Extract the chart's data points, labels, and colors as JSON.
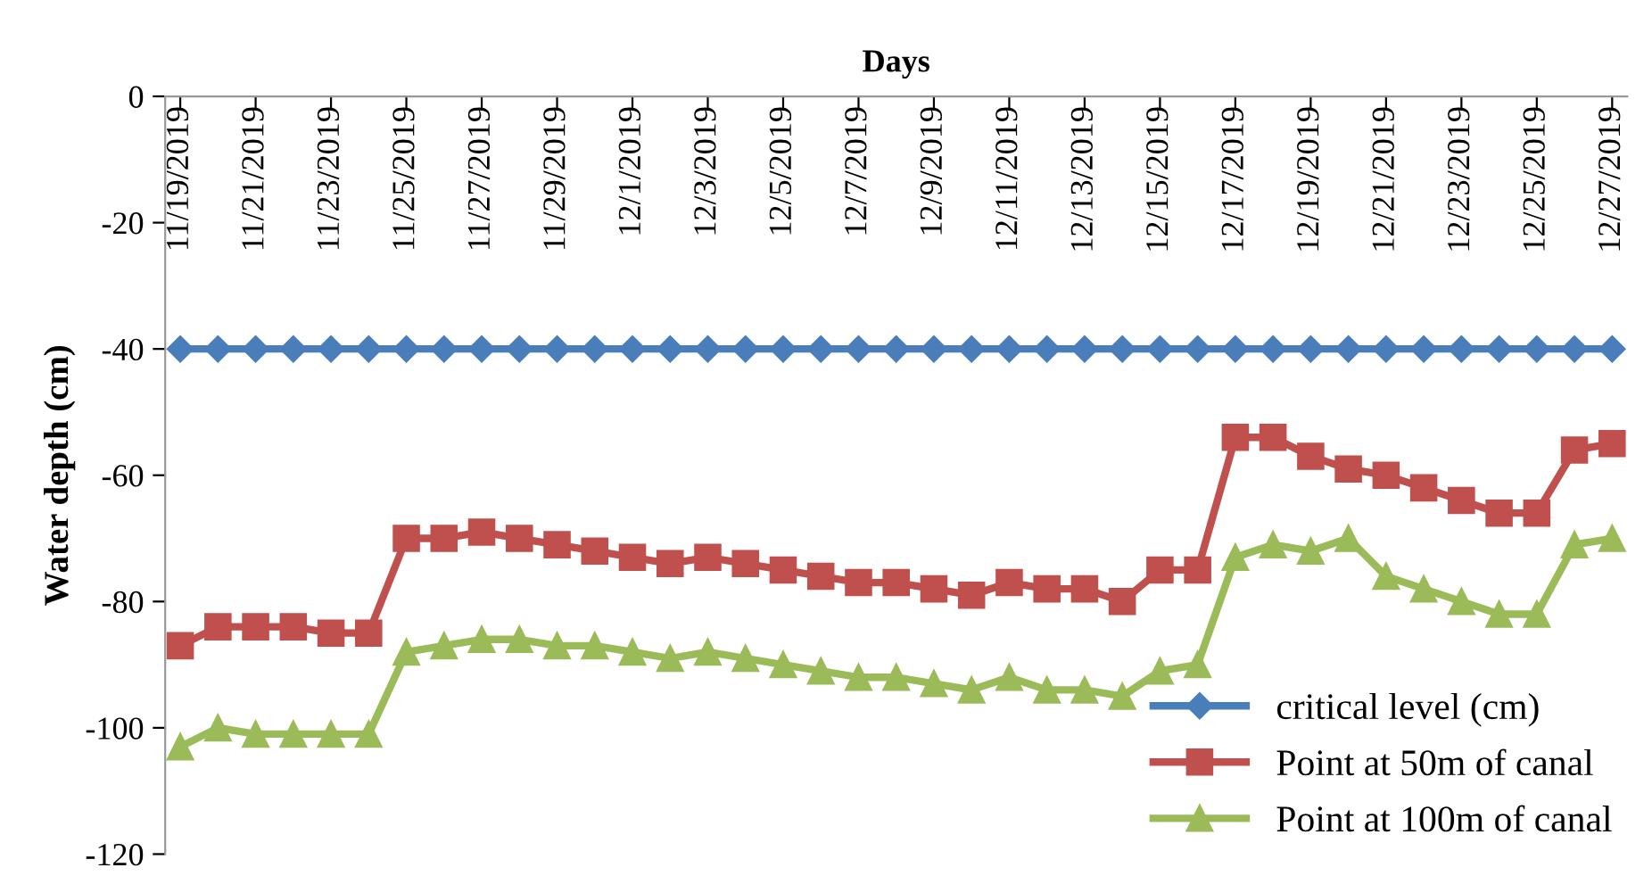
{
  "chart_data": {
    "type": "line",
    "xlabel": "Days",
    "ylabel": "Water depth (cm)",
    "categories": [
      "11/19/2019",
      null,
      "11/21/2019",
      null,
      "11/23/2019",
      null,
      "11/25/2019",
      null,
      "11/27/2019",
      null,
      "11/29/2019",
      null,
      "12/1/2019",
      null,
      "12/3/2019",
      null,
      "12/5/2019",
      null,
      "12/7/2019",
      null,
      "12/9/2019",
      null,
      "12/11/2019",
      null,
      "12/13/2019",
      null,
      "12/15/2019",
      null,
      "12/17/2019",
      null,
      "12/19/2019",
      null,
      "12/21/2019",
      null,
      "12/23/2019",
      null,
      "12/25/2019",
      null,
      "12/27/2019"
    ],
    "series": [
      {
        "name": "critical level (cm)",
        "color": "#4a7ebb",
        "marker": "diamond",
        "values": [
          -40,
          -40,
          -40,
          -40,
          -40,
          -40,
          -40,
          -40,
          -40,
          -40,
          -40,
          -40,
          -40,
          -40,
          -40,
          -40,
          -40,
          -40,
          -40,
          -40,
          -40,
          -40,
          -40,
          -40,
          -40,
          -40,
          -40,
          -40,
          -40,
          -40,
          -40,
          -40,
          -40,
          -40,
          -40,
          -40,
          -40,
          -40,
          -40
        ]
      },
      {
        "name": "Point at 50m of canal",
        "color": "#c0504d",
        "marker": "square",
        "values": [
          -87,
          -84,
          -84,
          -84,
          -85,
          -85,
          -70,
          -70,
          -69,
          -70,
          -71,
          -72,
          -73,
          -74,
          -73,
          -74,
          -75,
          -76,
          -77,
          -77,
          -78,
          -79,
          -77,
          -78,
          -78,
          -80,
          -75,
          -75,
          -54,
          -54,
          -57,
          -59,
          -60,
          -62,
          -64,
          -66,
          -66,
          -56,
          -55
        ]
      },
      {
        "name": "Point at 100m of canal",
        "color": "#9bbb59",
        "marker": "triangle",
        "values": [
          -103,
          -100,
          -101,
          -101,
          -101,
          -101,
          -88,
          -87,
          -86,
          -86,
          -87,
          -87,
          -88,
          -89,
          -88,
          -89,
          -90,
          -91,
          -92,
          -92,
          -93,
          -94,
          -92,
          -94,
          -94,
          -95,
          -91,
          -90,
          -73,
          -71,
          -72,
          -70,
          -76,
          -78,
          -80,
          -82,
          -82,
          -71,
          -70
        ]
      }
    ],
    "ylim": [
      -120,
      0
    ],
    "yticks": [
      -120,
      -100,
      -80,
      -60,
      -40,
      -20,
      0
    ],
    "grid": false,
    "legend": "bottom right",
    "line_style": "solid"
  }
}
